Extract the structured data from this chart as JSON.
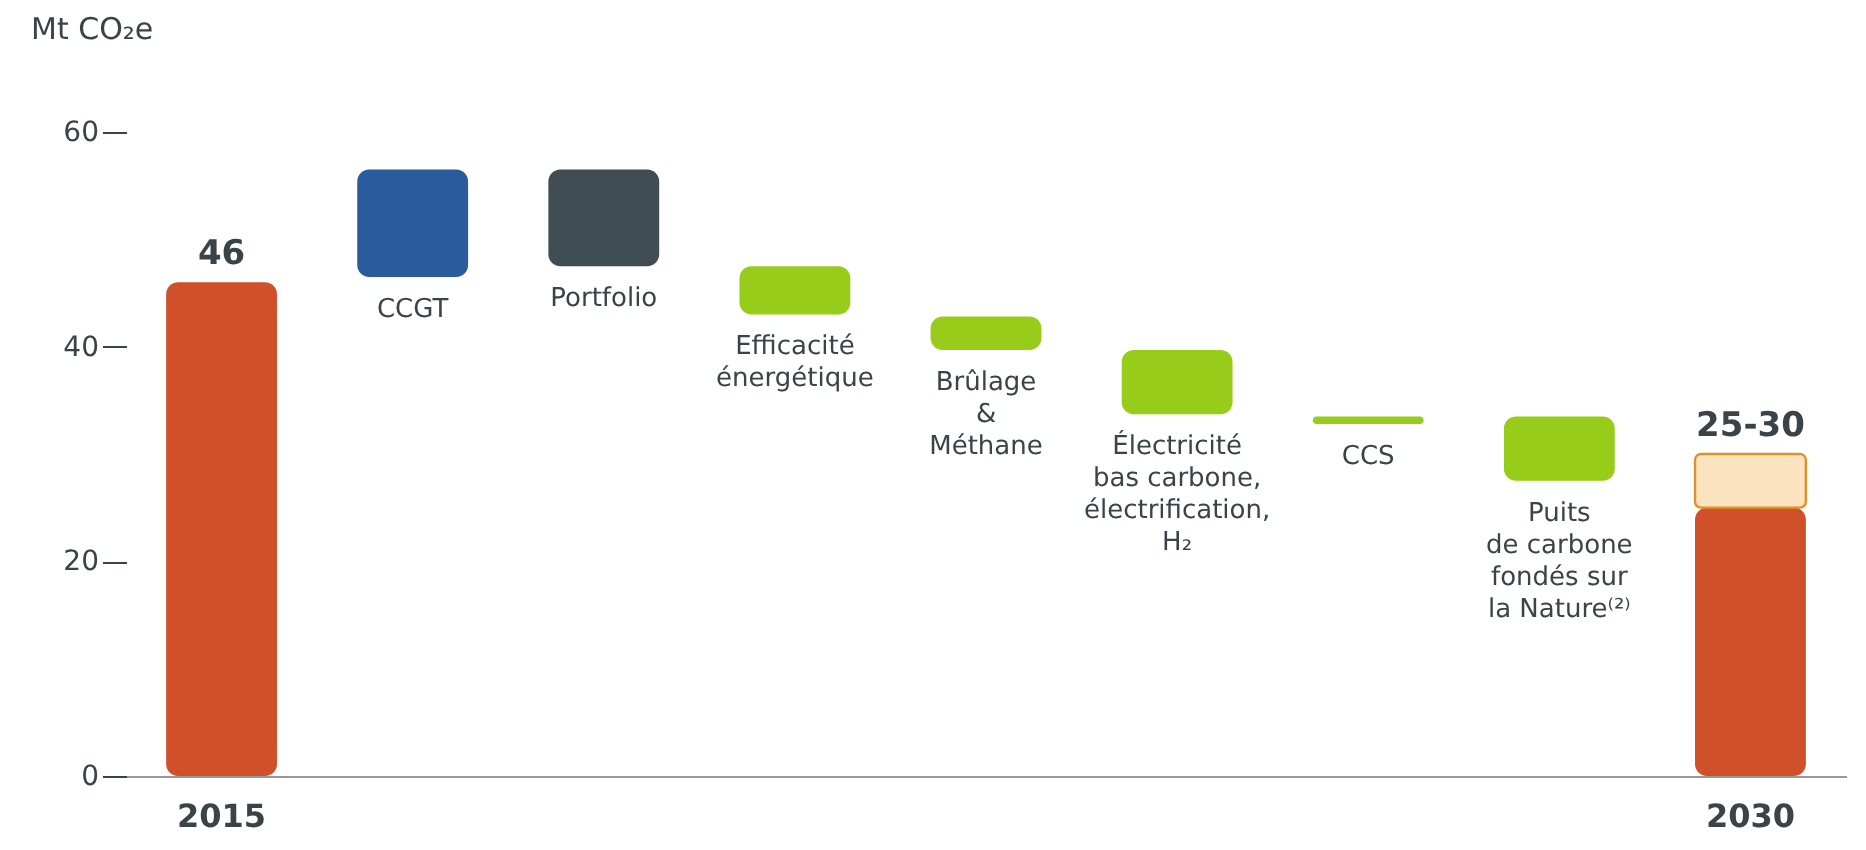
{
  "chart_data": {
    "type": "bar",
    "ylabel": "Mt CO₂e",
    "categories": [
      "2015",
      "CCGT",
      "Portfolio",
      "Efficacité\nénergétique",
      "Brûlage\n&\nMéthane",
      "Électricité\nbas carbone,\nélectrification,\nH₂",
      "CCS",
      "Puits\nde carbone\nfondés sur\nla Nature⁽²⁾",
      "2030"
    ],
    "ylim": [
      0,
      60
    ],
    "yticks": [
      0,
      20,
      40,
      60
    ],
    "grid": false,
    "series": [
      {
        "values": [
          46,
          10,
          9,
          4.5,
          3.1,
          6,
          0.7,
          6,
          25
        ],
        "base": [
          0,
          46.5,
          47.5,
          43,
          39.7,
          33.7,
          32.8,
          27.5,
          0
        ],
        "colors": [
          "#d0502a",
          "#2a5b9c",
          "#404e53",
          "#97cc1a",
          "#97cc1a",
          "#97cc1a",
          "#97cc1a",
          "#97cc1a",
          "#d0502a"
        ],
        "value_labels": [
          "46",
          null,
          null,
          null,
          null,
          null,
          null,
          null,
          null
        ]
      },
      {
        "values": [
          null,
          null,
          null,
          null,
          null,
          null,
          null,
          null,
          5
        ],
        "base": [
          null,
          null,
          null,
          null,
          null,
          null,
          null,
          null,
          25
        ],
        "color": "#fbe3c0",
        "value_labels": [
          null,
          null,
          null,
          null,
          null,
          null,
          null,
          null,
          "25-30"
        ]
      }
    ]
  }
}
